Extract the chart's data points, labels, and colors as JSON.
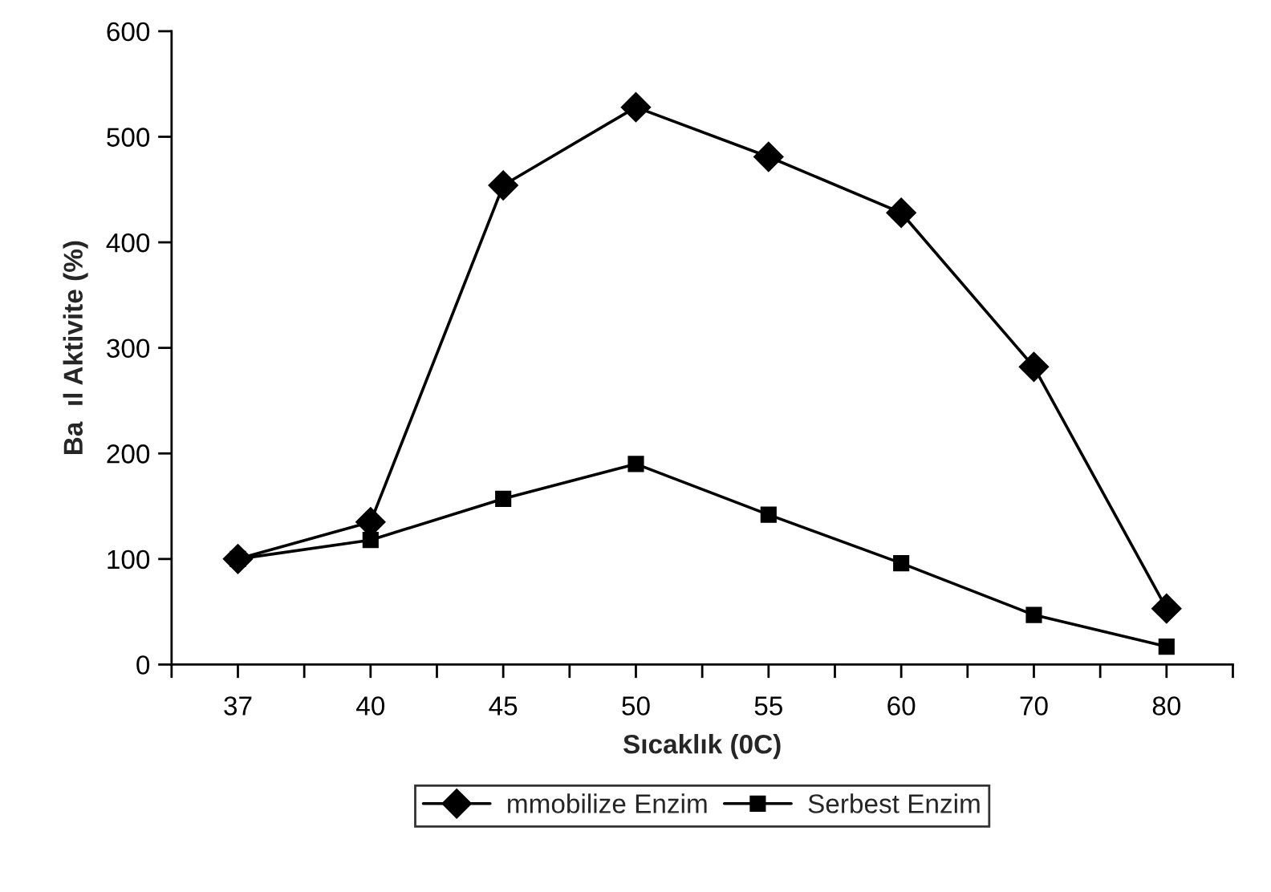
{
  "chart_data": {
    "type": "line",
    "xlabel": "Sıcaklık (0C)",
    "ylabel": "Ba  ıl Aktivite (%)",
    "categories": [
      "37",
      "40",
      "45",
      "50",
      "55",
      "60",
      "70",
      "80"
    ],
    "series": [
      {
        "name": "mmobilize Enzim",
        "color": "#000000",
        "marker": "diamond",
        "values": [
          100,
          135,
          454,
          528,
          481,
          428,
          282,
          53
        ]
      },
      {
        "name": "Serbest Enzim",
        "color": "#000000",
        "marker": "square",
        "values": [
          100,
          118,
          157,
          190,
          142,
          96,
          47,
          17
        ]
      }
    ],
    "ylim": [
      0,
      600
    ],
    "yticks": [
      0,
      100,
      200,
      300,
      400,
      500,
      600
    ],
    "grid": false,
    "legend": "bottom",
    "line_style": "solid"
  }
}
